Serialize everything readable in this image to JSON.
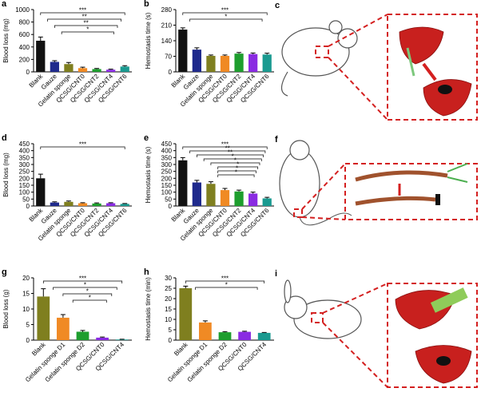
{
  "chart_data": [
    {
      "type": "bar",
      "panel": "a",
      "ylabel": "Blood loss (mg)",
      "categories": [
        "Blank",
        "Gauze",
        "Gelatin sponge",
        "QCSG/CNT0",
        "QCSG/CNT2",
        "QCSG/CNT4",
        "QCSG/CNT6"
      ],
      "values": [
        500,
        160,
        125,
        60,
        45,
        35,
        85
      ],
      "errors": [
        60,
        20,
        25,
        15,
        10,
        8,
        15
      ],
      "colors": [
        "#111111",
        "#1f2a8c",
        "#7f7f1f",
        "#f08a24",
        "#1e9e2e",
        "#8a2be2",
        "#1a9a90"
      ],
      "ylim": [
        0,
        1000
      ],
      "yticks": [
        0,
        200,
        400,
        600,
        800,
        1000
      ],
      "annotations": [
        "***",
        "**",
        "**",
        "*"
      ]
    },
    {
      "type": "bar",
      "panel": "b",
      "ylabel": "Hemostasis time (s)",
      "categories": [
        "Blank",
        "Gauze",
        "Gelatin sponge",
        "QCSG/CNT0",
        "QCSG/CNT2",
        "QCSG/CNT4",
        "QCSG/CNT6"
      ],
      "values": [
        190,
        100,
        72,
        72,
        82,
        80,
        78
      ],
      "errors": [
        8,
        8,
        4,
        4,
        5,
        5,
        6
      ],
      "colors": [
        "#111111",
        "#1f2a8c",
        "#7f7f1f",
        "#f08a24",
        "#1e9e2e",
        "#8a2be2",
        "#1a9a90"
      ],
      "ylim": [
        0,
        280
      ],
      "yticks": [
        0,
        70,
        140,
        210,
        280
      ],
      "annotations": [
        "***",
        "*"
      ]
    },
    {
      "type": "bar",
      "panel": "d",
      "ylabel": "Blood loss (mg)",
      "categories": [
        "Blank",
        "Gauze",
        "Gelatin sponge",
        "QCSG/CNT0",
        "QCSG/CNT2",
        "QCSG/CNT4",
        "QCSG/CNT6"
      ],
      "values": [
        200,
        25,
        30,
        20,
        18,
        20,
        15
      ],
      "errors": [
        30,
        5,
        6,
        4,
        4,
        4,
        3
      ],
      "colors": [
        "#111111",
        "#1f2a8c",
        "#7f7f1f",
        "#f08a24",
        "#1e9e2e",
        "#8a2be2",
        "#1a9a90"
      ],
      "ylim": [
        0,
        450
      ],
      "yticks": [
        0,
        50,
        100,
        150,
        200,
        250,
        300,
        350,
        400,
        450
      ],
      "annotations": [
        "***"
      ]
    },
    {
      "type": "bar",
      "panel": "e",
      "ylabel": "Hemostasis time (s)",
      "categories": [
        "Blank",
        "Gauze",
        "Gelatin sponge",
        "QCSG/CNT0",
        "QCSG/CNT2",
        "QCSG/CNT4",
        "QCSG/CNT6"
      ],
      "values": [
        330,
        170,
        160,
        115,
        105,
        90,
        55
      ],
      "errors": [
        20,
        15,
        15,
        12,
        10,
        10,
        8
      ],
      "colors": [
        "#111111",
        "#1f2a8c",
        "#7f7f1f",
        "#f08a24",
        "#1e9e2e",
        "#8a2be2",
        "#1a9a90"
      ],
      "ylim": [
        0,
        450
      ],
      "yticks": [
        0,
        50,
        100,
        150,
        200,
        250,
        300,
        350,
        400,
        450
      ],
      "annotations": [
        "***",
        "**",
        "**",
        "*",
        "*",
        "*",
        "*",
        "*"
      ]
    },
    {
      "type": "bar",
      "panel": "g",
      "ylabel": "Blood loss (g)",
      "categories": [
        "Blank",
        "Gelatin sponge D1",
        "Gelatin sponge D2",
        "QCSG/CNT0",
        "QCSG/CNT4"
      ],
      "values": [
        14,
        7.2,
        2.7,
        0.8,
        0.2
      ],
      "errors": [
        2.5,
        1,
        0.4,
        0.2,
        0.1
      ],
      "colors": [
        "#7f7f1f",
        "#f08a24",
        "#1e9e2e",
        "#8a2be2",
        "#1a9a90"
      ],
      "ylim": [
        0,
        20
      ],
      "yticks": [
        0,
        5,
        10,
        15,
        20
      ],
      "annotations": [
        "***",
        "*",
        "*",
        "*"
      ]
    },
    {
      "type": "bar",
      "panel": "h",
      "ylabel": "Hemostasis time (min)",
      "categories": [
        "Blank",
        "Gelatin sponge D1",
        "Gelatin sponge D2",
        "QCSG/CNT0",
        "QCSG/CNT4"
      ],
      "values": [
        25,
        8.5,
        3.8,
        4,
        3.5
      ],
      "errors": [
        1,
        0.8,
        0.3,
        0.3,
        0.2
      ],
      "colors": [
        "#7f7f1f",
        "#f08a24",
        "#1e9e2e",
        "#8a2be2",
        "#1a9a90"
      ],
      "ylim": [
        0,
        30
      ],
      "yticks": [
        0,
        5,
        10,
        15,
        20,
        25,
        30
      ],
      "annotations": [
        "***",
        "*"
      ]
    }
  ],
  "illustrations": [
    {
      "label": "c"
    },
    {
      "label": "f"
    },
    {
      "label": "i"
    }
  ]
}
